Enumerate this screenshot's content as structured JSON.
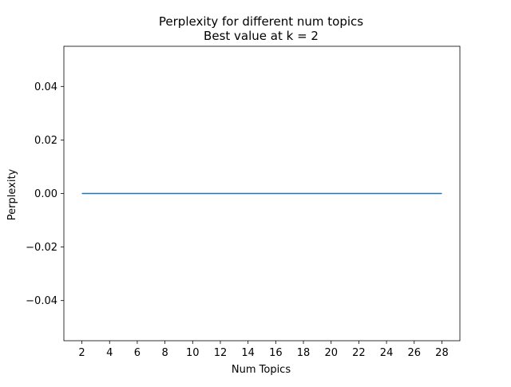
{
  "chart_data": {
    "type": "line",
    "title": "Perplexity for different num topics",
    "subtitle": "Best value at k = 2",
    "xlabel": "Num Topics",
    "ylabel": "Perplexity",
    "xlim": [
      0.7,
      29.3
    ],
    "ylim": [
      -0.055,
      0.055
    ],
    "xticks": [
      2,
      4,
      6,
      8,
      10,
      12,
      14,
      16,
      18,
      20,
      22,
      24,
      26,
      28
    ],
    "xtick_labels": [
      "2",
      "4",
      "6",
      "8",
      "10",
      "12",
      "14",
      "16",
      "18",
      "20",
      "22",
      "24",
      "26",
      "28"
    ],
    "yticks": [
      -0.04,
      -0.02,
      0.0,
      0.02,
      0.04
    ],
    "ytick_labels": [
      "−0.04",
      "−0.02",
      "0.00",
      "0.02",
      "0.04"
    ],
    "grid": false,
    "series": [
      {
        "color": "#1f77b4",
        "x": [
          2,
          3,
          4,
          5,
          6,
          7,
          8,
          9,
          10,
          11,
          12,
          13,
          14,
          15,
          16,
          17,
          18,
          19,
          20,
          21,
          22,
          23,
          24,
          25,
          26,
          27,
          28
        ],
        "y": [
          0,
          0,
          0,
          0,
          0,
          0,
          0,
          0,
          0,
          0,
          0,
          0,
          0,
          0,
          0,
          0,
          0,
          0,
          0,
          0,
          0,
          0,
          0,
          0,
          0,
          0,
          0
        ]
      }
    ]
  }
}
